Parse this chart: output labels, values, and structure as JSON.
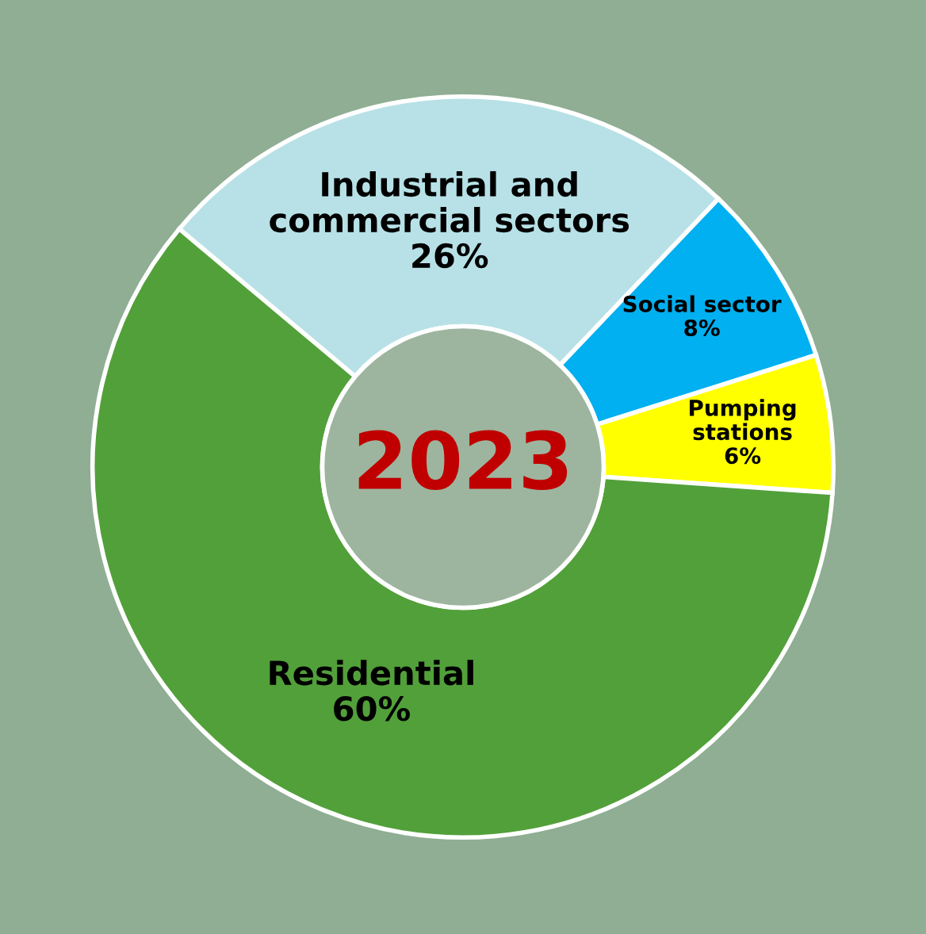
{
  "chart_data": {
    "type": "donut",
    "title": "2023",
    "categories": [
      "Industrial and\ncommercial sectors",
      "Social sector",
      "Pumping\nstations",
      "Residential"
    ],
    "values": [
      26,
      8,
      6,
      60
    ],
    "colors": [
      "#b7e1e7",
      "#00b0f0",
      "#ffff00",
      "#52a03a"
    ],
    "value_labels": [
      "26%",
      "8%",
      "6%",
      "60%"
    ]
  }
}
